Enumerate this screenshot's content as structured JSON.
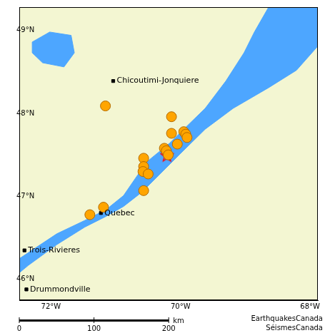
{
  "chart_data": {
    "type": "scatter",
    "xlim": [
      -72.49,
      -67.88
    ],
    "ylim": [
      45.75,
      49.28
    ],
    "xticks": [
      {
        "value": -72,
        "label": "72°W"
      },
      {
        "value": -70,
        "label": "70°W"
      },
      {
        "value": -68,
        "label": "68°W"
      }
    ],
    "yticks": [
      {
        "value": 46,
        "label": "46°N"
      },
      {
        "value": 47,
        "label": "47°N"
      },
      {
        "value": 48,
        "label": "48°N"
      },
      {
        "value": 49,
        "label": "49°N"
      }
    ],
    "grid": false,
    "series": [
      {
        "marker": "circle",
        "color": "#ffa500",
        "x": [
          -71.16,
          -70.14,
          -70.14,
          -69.95,
          -69.92,
          -69.9,
          -70.05,
          -70.25,
          -70.22,
          -70.19,
          -70.57,
          -70.57,
          -70.58,
          -70.5,
          -70.57,
          -71.19,
          -71.4
        ],
        "y": [
          48.09,
          47.96,
          47.76,
          47.78,
          47.75,
          47.71,
          47.63,
          47.58,
          47.55,
          47.5,
          47.46,
          47.36,
          47.3,
          47.27,
          47.07,
          46.87,
          46.78
        ]
      },
      {
        "marker": "star",
        "color": "#ff0000",
        "x": [
          -70.21
        ],
        "y": [
          47.49
        ]
      },
      {
        "marker": "square",
        "color": "#000000",
        "x": [
          -71.04,
          -71.23,
          -72.41,
          -72.38
        ],
        "y": [
          48.39,
          46.8,
          46.35,
          45.88
        ],
        "labels": [
          "Chicoutimi-Jonquiere",
          "Quebec",
          "Trois-Rivieres",
          "Drummondville"
        ]
      }
    ],
    "water": {
      "color": "#4da6ff",
      "shapes": [
        {
          "x": [
            -72.49,
            -71.91,
            -71.48,
            -71.15,
            -70.88,
            -70.66,
            -70.5,
            -70.17,
            -69.95,
            -69.62,
            -69.3,
            -69.02,
            -68.86,
            -68.64,
            -67.87,
            -67.87,
            -68.21,
            -68.64,
            -69.19,
            -69.62,
            -70.01,
            -70.33,
            -70.6,
            -70.88,
            -71.15,
            -71.48,
            -71.91,
            -72.35,
            -72.49
          ],
          "y": [
            46.25,
            46.55,
            46.71,
            46.84,
            47.01,
            47.26,
            47.43,
            47.64,
            47.81,
            48.06,
            48.39,
            48.73,
            48.98,
            49.28,
            49.28,
            48.82,
            48.52,
            48.31,
            48.06,
            47.81,
            47.51,
            47.26,
            47.05,
            46.88,
            46.76,
            46.63,
            46.42,
            46.17,
            46.08
          ]
        },
        {
          "x": [
            -72.29,
            -72.02,
            -71.69,
            -71.64,
            -71.8,
            -72.13,
            -72.29
          ],
          "y": [
            48.86,
            48.98,
            48.94,
            48.73,
            48.56,
            48.61,
            48.73
          ]
        }
      ]
    },
    "scale_bar": {
      "ticks": [
        0,
        100,
        200
      ],
      "unit": "km"
    },
    "credit": [
      "EarthquakesCanada",
      "SéismesCanada"
    ]
  }
}
